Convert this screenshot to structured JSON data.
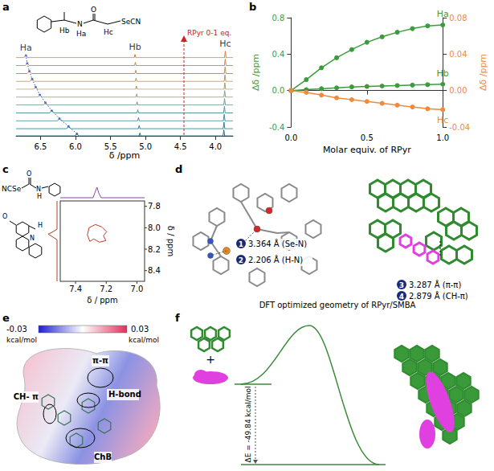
{
  "chart_data": [
    {
      "label": "a",
      "type": "spectra",
      "xlabel": "δ /ppm",
      "xlim": [
        6.85,
        3.75
      ],
      "xticks": [
        6.5,
        {
          "value": 6,
          "label": "6.0"
        },
        5.5,
        {
          "value": 5,
          "label": "5.0"
        },
        4.5,
        {
          "value": 4,
          "label": "4.0"
        }
      ],
      "ylim": [
        0,
        1.2
      ],
      "tick_labels": "x",
      "peak_names": [
        "Ha",
        "Hb",
        "Hc"
      ],
      "peak_heights": [
        0.35,
        0.5,
        1.0
      ],
      "annotation": "RPyr 0-1 eq.",
      "structure_labels": [
        "Hb",
        "N",
        "Ha",
        "O",
        "Hc",
        "SeCN"
      ],
      "series": [
        {
          "color": "#1f6e8c",
          "peaks": [
            5.98,
            5.08,
            3.88
          ]
        },
        {
          "color": "#2b7d99",
          "peaks": [
            6.1,
            5.09,
            3.878
          ]
        },
        {
          "color": "#3d8c9e",
          "peaks": [
            6.23,
            5.1,
            3.875
          ]
        },
        {
          "color": "#55979b",
          "peaks": [
            6.34,
            5.11,
            3.872
          ]
        },
        {
          "color": "#729d92",
          "peaks": [
            6.43,
            5.12,
            3.87
          ]
        },
        {
          "color": "#8f9f85",
          "peaks": [
            6.51,
            5.125,
            3.868
          ]
        },
        {
          "color": "#a89b74",
          "peaks": [
            6.57,
            5.13,
            3.866
          ]
        },
        {
          "color": "#bb9462",
          "peaks": [
            6.62,
            5.135,
            3.864
          ]
        },
        {
          "color": "#c98b52",
          "peaks": [
            6.66,
            5.14,
            3.862
          ]
        },
        {
          "color": "#d48345",
          "peaks": [
            6.69,
            5.145,
            3.86
          ]
        },
        {
          "color": "#dd7b3a",
          "peaks": [
            6.71,
            5.15,
            3.859
          ]
        }
      ]
    },
    {
      "label": "b",
      "type": "line",
      "xlabel": "Molar equiv. of RPyr",
      "ylabel": "Δδ /ppm",
      "y2label": "Δδ /ppm",
      "x": [
        0,
        0.1,
        0.2,
        0.3,
        0.4,
        0.5,
        0.6,
        0.7,
        0.8,
        0.9,
        1.0
      ],
      "xlim": [
        0,
        1
      ],
      "xticks": [
        {
          "value": 0,
          "label": "0.0"
        },
        0.5,
        {
          "value": 1,
          "label": "1.0"
        }
      ],
      "ylim": [
        -0.4,
        0.8
      ],
      "yticks": [
        -0.4,
        {
          "value": 0,
          "label": "0.0"
        },
        0.4,
        0.8
      ],
      "y2lim": [
        -0.04,
        0.08
      ],
      "y2ticks": [
        -0.04,
        {
          "value": 0,
          "label": "0.00"
        },
        0.04,
        0.08
      ],
      "marker": "circle",
      "grid": false,
      "series": [
        {
          "name": "Ha",
          "color": "#3c9c3c",
          "values": [
            0,
            0.12,
            0.25,
            0.36,
            0.45,
            0.53,
            0.59,
            0.64,
            0.68,
            0.71,
            0.72
          ]
        },
        {
          "name": "Hb",
          "color": "#3c9c3c",
          "values": [
            0,
            0.01,
            0.02,
            0.03,
            0.04,
            0.045,
            0.05,
            0.055,
            0.06,
            0.065,
            0.07
          ]
        },
        {
          "name": "Hc",
          "color": "#f08a3c",
          "axis": "y2",
          "values": [
            0,
            -0.002,
            -0.005,
            -0.008,
            -0.01,
            -0.012,
            -0.014,
            -0.016,
            -0.018,
            -0.02,
            -0.021
          ]
        }
      ]
    }
  ],
  "panels": {
    "c": {
      "label": "c",
      "xlabel": "δ / ppm",
      "ylabel": "δ / ppm",
      "xlim": [
        7.5,
        6.95
      ],
      "xticks": [
        7.4,
        7.2,
        {
          "value": 7,
          "label": "7.0"
        }
      ],
      "ylim": [
        7.75,
        8.5
      ],
      "yticks": [
        7.8,
        {
          "value": 8,
          "label": "8.0"
        },
        8.2,
        8.4
      ],
      "cross_peak": {
        "x": 7.26,
        "y": 8.06
      },
      "structure_labels": [
        "NCSe",
        "O",
        "N",
        "H"
      ],
      "pyridine_labels": [
        "O",
        "N",
        "H"
      ]
    },
    "d": {
      "label": "d",
      "interactions": [
        {
          "number": "1",
          "text": "3.364 Å (Se-N)"
        },
        {
          "number": "2",
          "text": "2.206 Å (H-N)"
        },
        {
          "number": "3",
          "text": "3.287 Å (π-π)"
        },
        {
          "number": "4",
          "text": "2.879 Å (CH-π)"
        }
      ],
      "caption": "DFT optimized geometry of RPyr/SMBA"
    },
    "e": {
      "label": "e",
      "colorbar": {
        "range": [
          -0.03,
          0.03
        ],
        "unit": "kcal/mol"
      },
      "regions": [
        "π-π",
        "CH- π",
        "H-bond",
        "ChB"
      ]
    },
    "f": {
      "label": "f",
      "plus": "+",
      "energy_label": "ΔE = -49.84 kcal/mol"
    }
  }
}
